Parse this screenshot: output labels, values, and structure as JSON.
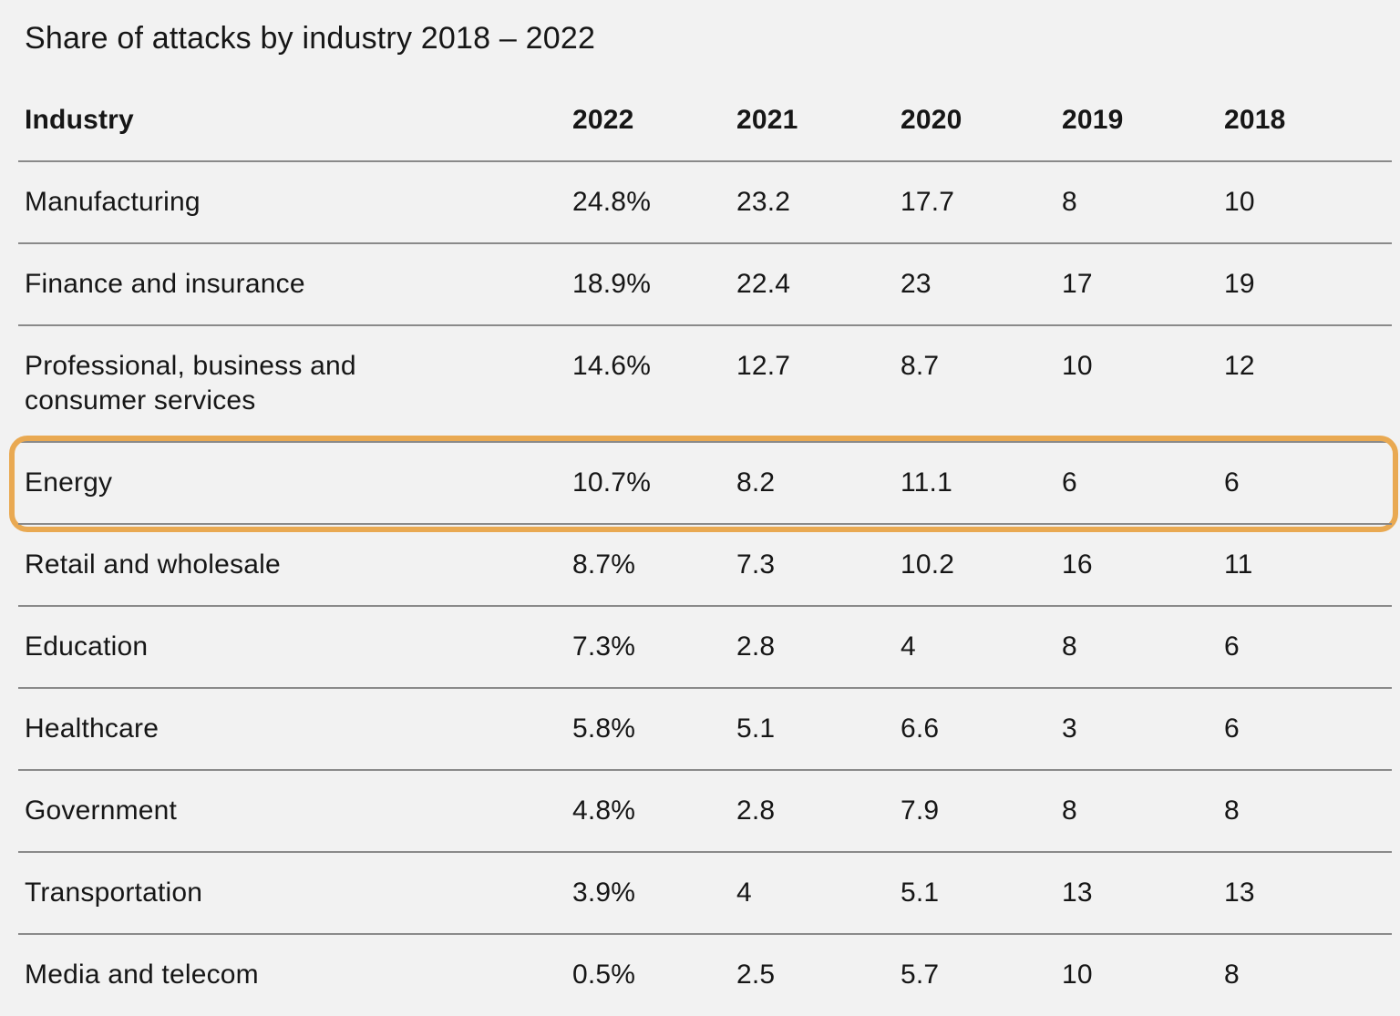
{
  "title": "Share of attacks by industry 2018 – 2022",
  "chart_data": {
    "type": "table",
    "title": "Share of attacks by industry 2018 – 2022",
    "columns": [
      "Industry",
      "2022",
      "2021",
      "2020",
      "2019",
      "2018"
    ],
    "rows": [
      [
        "Manufacturing",
        "24.8%",
        "23.2",
        "17.7",
        "8",
        "10"
      ],
      [
        "Finance and insurance",
        "18.9%",
        "22.4",
        "23",
        "17",
        "19"
      ],
      [
        "Professional, business and consumer services",
        "14.6%",
        "12.7",
        "8.7",
        "10",
        "12"
      ],
      [
        "Energy",
        "10.7%",
        "8.2",
        "11.1",
        "6",
        "6"
      ],
      [
        "Retail and wholesale",
        "8.7%",
        "7.3",
        "10.2",
        "16",
        "11"
      ],
      [
        "Education",
        "7.3%",
        "2.8",
        "4",
        "8",
        "6"
      ],
      [
        "Healthcare",
        "5.8%",
        "5.1",
        "6.6",
        "3",
        "6"
      ],
      [
        "Government",
        "4.8%",
        "2.8",
        "7.9",
        "8",
        "8"
      ],
      [
        "Transportation",
        "3.9%",
        "4",
        "5.1",
        "13",
        "13"
      ],
      [
        "Media and telecom",
        "0.5%",
        "2.5",
        "5.7",
        "10",
        "8"
      ]
    ],
    "highlighted_row": "Energy"
  },
  "styles": {
    "highlight_color": "#E9A952",
    "background_color": "#f2f2f2",
    "divider_color": "#8a8a8a",
    "text_color": "#161616"
  }
}
